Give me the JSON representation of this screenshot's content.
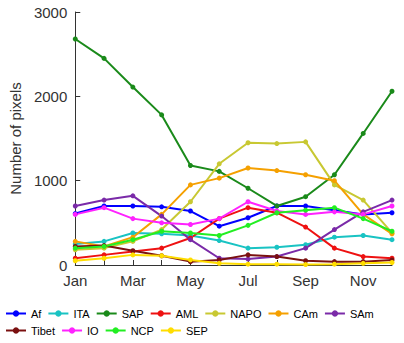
{
  "chart_data": {
    "type": "line",
    "y_label": "Number of pixels",
    "categories": [
      "Jan",
      null,
      "Mar",
      null,
      "May",
      null,
      "Jul",
      null,
      "Sep",
      null,
      "Nov",
      null
    ],
    "ylim": [
      0,
      3000
    ],
    "yticks": [
      0,
      1000,
      2000,
      3000
    ],
    "grid": false,
    "legend": "bottom",
    "marker": "circle",
    "series": [
      {
        "name": "Af",
        "color": "#0000ff",
        "values": [
          610,
          700,
          700,
          690,
          640,
          460,
          560,
          700,
          700,
          650,
          600,
          620
        ]
      },
      {
        "name": "ITA",
        "color": "#19c3c3",
        "values": [
          250,
          280,
          380,
          370,
          350,
          290,
          200,
          210,
          240,
          330,
          350,
          300
        ]
      },
      {
        "name": "SAP",
        "color": "#1a8a1a",
        "values": [
          2680,
          2450,
          2110,
          1780,
          1180,
          1110,
          910,
          700,
          810,
          1070,
          1560,
          2060
        ]
      },
      {
        "name": "AML",
        "color": "#ee1111",
        "values": [
          80,
          120,
          160,
          200,
          320,
          550,
          680,
          620,
          450,
          200,
          100,
          80
        ]
      },
      {
        "name": "NAPO",
        "color": "#c8c832",
        "values": [
          180,
          200,
          280,
          420,
          750,
          1200,
          1450,
          1440,
          1460,
          950,
          770,
          380
        ]
      },
      {
        "name": "CAm",
        "color": "#f5a000",
        "values": [
          280,
          220,
          330,
          600,
          950,
          1030,
          1150,
          1120,
          1070,
          1000,
          600,
          370
        ]
      },
      {
        "name": "SAm",
        "color": "#7a2aa8",
        "values": [
          700,
          770,
          820,
          580,
          300,
          80,
          70,
          100,
          200,
          420,
          630,
          770
        ]
      },
      {
        "name": "Tibet",
        "color": "#7a1010",
        "values": [
          220,
          230,
          170,
          110,
          40,
          60,
          120,
          100,
          50,
          40,
          40,
          60
        ]
      },
      {
        "name": "IO",
        "color": "#ff22ff",
        "values": [
          600,
          680,
          550,
          500,
          480,
          550,
          750,
          640,
          600,
          630,
          600,
          700
        ]
      },
      {
        "name": "NCP",
        "color": "#22ee22",
        "values": [
          200,
          220,
          300,
          400,
          380,
          350,
          470,
          620,
          650,
          680,
          550,
          400
        ]
      },
      {
        "name": "SEP",
        "color": "#ffdd00",
        "values": [
          50,
          80,
          120,
          110,
          60,
          20,
          10,
          10,
          5,
          10,
          20,
          30
        ]
      }
    ]
  }
}
